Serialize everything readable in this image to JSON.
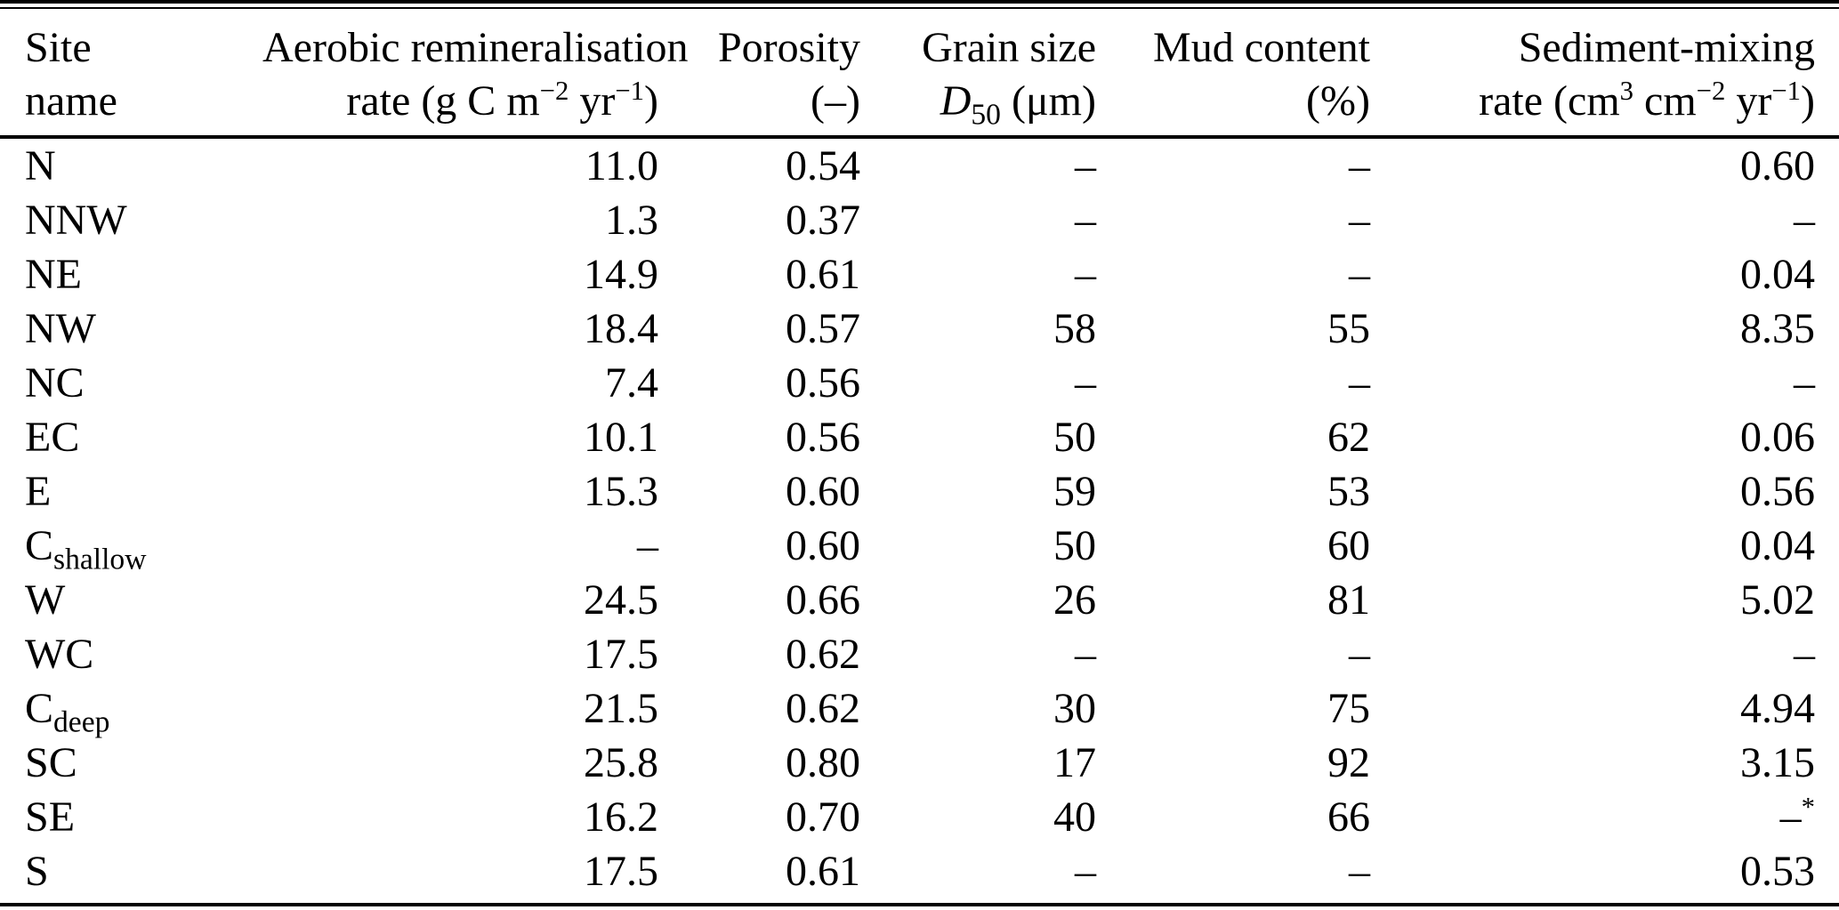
{
  "table": {
    "header": {
      "columns": [
        {
          "line1": "Site",
          "line2": "name"
        },
        {
          "line1": "Aerobic remineralisation",
          "line2": "rate (g C m<sup>−2</sup> yr<sup>−1</sup>)"
        },
        {
          "line1": "Porosity",
          "line2": "(–)"
        },
        {
          "line1": "Grain size",
          "line2": "<i>D</i><sub>50</sub> (μm)"
        },
        {
          "line1": "Mud content",
          "line2": "(%)"
        },
        {
          "line1": "Sediment-mixing",
          "line2": "rate (cm<sup>3</sup> cm<sup>−2</sup> yr<sup>−1</sup>)"
        }
      ]
    },
    "rows": [
      {
        "site": "N",
        "aerobic_rate": "11.0",
        "porosity": "0.54",
        "grain_size": "–",
        "mud_content": "–",
        "mixing_rate": "0.60"
      },
      {
        "site": "NNW",
        "aerobic_rate": "1.3",
        "porosity": "0.37",
        "grain_size": "–",
        "mud_content": "–",
        "mixing_rate": "–"
      },
      {
        "site": "NE",
        "aerobic_rate": "14.9",
        "porosity": "0.61",
        "grain_size": "–",
        "mud_content": "–",
        "mixing_rate": "0.04"
      },
      {
        "site": "NW",
        "aerobic_rate": "18.4",
        "porosity": "0.57",
        "grain_size": "58",
        "mud_content": "55",
        "mixing_rate": "8.35"
      },
      {
        "site": "NC",
        "aerobic_rate": "7.4",
        "porosity": "0.56",
        "grain_size": "–",
        "mud_content": "–",
        "mixing_rate": "–"
      },
      {
        "site": "EC",
        "aerobic_rate": "10.1",
        "porosity": "0.56",
        "grain_size": "50",
        "mud_content": "62",
        "mixing_rate": "0.06"
      },
      {
        "site": "E",
        "aerobic_rate": "15.3",
        "porosity": "0.60",
        "grain_size": "59",
        "mud_content": "53",
        "mixing_rate": "0.56"
      },
      {
        "site": "C<sub>shallow</sub>",
        "aerobic_rate": "–",
        "porosity": "0.60",
        "grain_size": "50",
        "mud_content": "60",
        "mixing_rate": "0.04"
      },
      {
        "site": "W",
        "aerobic_rate": "24.5",
        "porosity": "0.66",
        "grain_size": "26",
        "mud_content": "81",
        "mixing_rate": "5.02"
      },
      {
        "site": "WC",
        "aerobic_rate": "17.5",
        "porosity": "0.62",
        "grain_size": "–",
        "mud_content": "–",
        "mixing_rate": "–"
      },
      {
        "site": "C<sub>deep</sub>",
        "aerobic_rate": "21.5",
        "porosity": "0.62",
        "grain_size": "30",
        "mud_content": "75",
        "mixing_rate": "4.94"
      },
      {
        "site": "SC",
        "aerobic_rate": "25.8",
        "porosity": "0.80",
        "grain_size": "17",
        "mud_content": "92",
        "mixing_rate": "3.15"
      },
      {
        "site": "SE",
        "aerobic_rate": "16.2",
        "porosity": "0.70",
        "grain_size": "40",
        "mud_content": "66",
        "mixing_rate": "–<sup>*</sup>"
      },
      {
        "site": "S",
        "aerobic_rate": "17.5",
        "porosity": "0.61",
        "grain_size": "–",
        "mud_content": "–",
        "mixing_rate": "0.53"
      }
    ]
  }
}
